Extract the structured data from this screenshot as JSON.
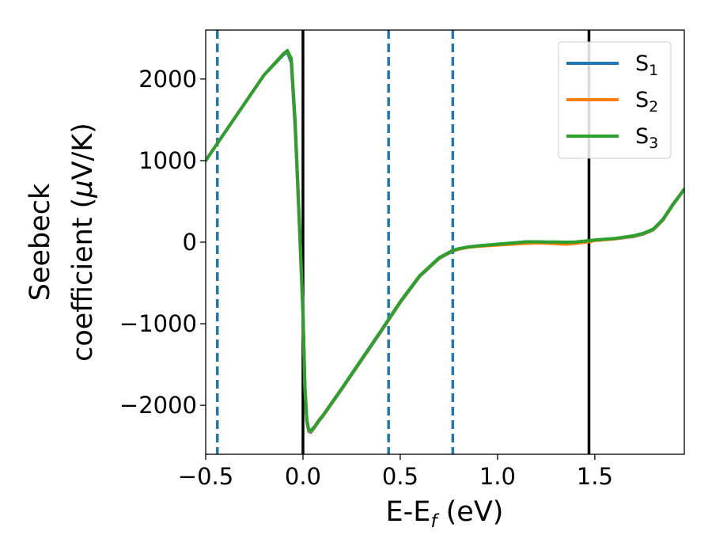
{
  "chart_data": {
    "type": "line",
    "title": "",
    "xlabel": "E-E",
    "xlabel_sub": "f",
    "xlabel_unit": " (eV)",
    "ylabel_line1": "Seebeck",
    "ylabel_line2_pre": "coefficient  (",
    "ylabel_mu": "μ",
    "ylabel_line2_post": "V/K)",
    "xlim": [
      -0.5,
      1.96
    ],
    "ylim": [
      -2600,
      2600
    ],
    "xticks": [
      -0.5,
      0.0,
      0.5,
      1.0,
      1.5
    ],
    "xtick_labels": [
      "−0.5",
      "0.0",
      "0.5",
      "1.0",
      "1.5"
    ],
    "yticks": [
      -2000,
      -1000,
      0,
      1000,
      2000
    ],
    "ytick_labels": [
      "−2000",
      "−1000",
      "0",
      "1000",
      "2000"
    ],
    "grid": false,
    "legend_position": "top-right",
    "vlines_solid": [
      0.0,
      1.47
    ],
    "vlines_dashed": [
      -0.44,
      0.44,
      0.77
    ],
    "colors": {
      "solid_vline": "#000000",
      "dashed_vline": "#1f77b4"
    },
    "x": [
      -0.5,
      -0.4,
      -0.3,
      -0.2,
      -0.1,
      -0.08,
      -0.06,
      -0.04,
      -0.02,
      0.0,
      0.01,
      0.02,
      0.03,
      0.04,
      0.06,
      0.08,
      0.1,
      0.2,
      0.3,
      0.4,
      0.5,
      0.6,
      0.7,
      0.77,
      0.8,
      0.85,
      0.9,
      1.0,
      1.1,
      1.15,
      1.2,
      1.25,
      1.3,
      1.35,
      1.4,
      1.47,
      1.5,
      1.6,
      1.7,
      1.75,
      1.8,
      1.85,
      1.9,
      1.96
    ],
    "series": [
      {
        "name": "S",
        "name_sub": "1",
        "color": "#1f77b4",
        "values": [
          1000,
          1350,
          1700,
          2050,
          2300,
          2330,
          2200,
          1400,
          300,
          -900,
          -1800,
          -2200,
          -2320,
          -2330,
          -2270,
          -2200,
          -2140,
          -1800,
          -1450,
          -1100,
          -740,
          -420,
          -200,
          -110,
          -85,
          -60,
          -45,
          -25,
          -5,
          5,
          5,
          0,
          0,
          -5,
          0,
          15,
          25,
          40,
          70,
          100,
          150,
          270,
          450,
          650
        ]
      },
      {
        "name": "S",
        "name_sub": "2",
        "color": "#ff7f0e",
        "values": [
          1000,
          1350,
          1700,
          2050,
          2310,
          2345,
          2240,
          1450,
          330,
          -870,
          -1780,
          -2190,
          -2310,
          -2320,
          -2265,
          -2195,
          -2135,
          -1795,
          -1445,
          -1095,
          -735,
          -415,
          -195,
          -105,
          -85,
          -62,
          -50,
          -35,
          -20,
          -15,
          -10,
          -12,
          -18,
          -25,
          -15,
          5,
          20,
          40,
          75,
          105,
          155,
          275,
          455,
          650
        ]
      },
      {
        "name": "S",
        "name_sub": "3",
        "color": "#2ca02c",
        "values": [
          1000,
          1350,
          1700,
          2050,
          2310,
          2350,
          2250,
          1480,
          360,
          -850,
          -1760,
          -2180,
          -2300,
          -2310,
          -2260,
          -2190,
          -2130,
          -1790,
          -1440,
          -1090,
          -730,
          -410,
          -190,
          -100,
          -80,
          -58,
          -45,
          -25,
          -5,
          5,
          5,
          3,
          3,
          0,
          3,
          18,
          28,
          45,
          80,
          110,
          160,
          280,
          460,
          650
        ]
      }
    ]
  }
}
